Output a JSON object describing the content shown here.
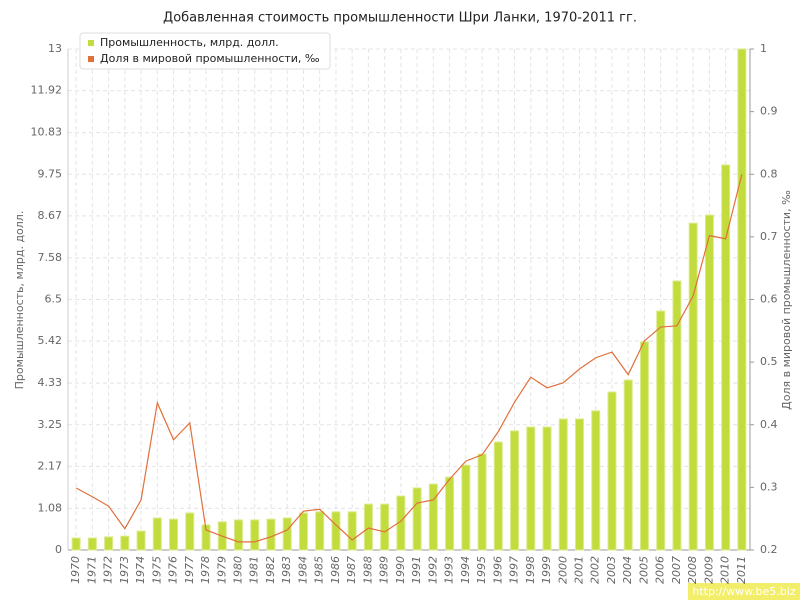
{
  "chart_data": {
    "type": "bar+line",
    "title": "Добавленная стоимость промышленности Шри Ланки, 1970-2011 гг.",
    "y_label": "Промышленность, млрд. долл.",
    "y2_label": "Доля в мировой промышленности, ‰",
    "watermark": "http://www.be5.biz",
    "legend": "top-left",
    "grid": true,
    "categories": [
      "1970",
      "1971",
      "1972",
      "1973",
      "1974",
      "1975",
      "1976",
      "1977",
      "1978",
      "1979",
      "1980",
      "1981",
      "1982",
      "1983",
      "1984",
      "1985",
      "1986",
      "1987",
      "1988",
      "1989",
      "1990",
      "1991",
      "1992",
      "1993",
      "1994",
      "1995",
      "1996",
      "1997",
      "1998",
      "1999",
      "2000",
      "2001",
      "2002",
      "2003",
      "2004",
      "2005",
      "2006",
      "2007",
      "2008",
      "2009",
      "2010",
      "2011"
    ],
    "ylim": [
      0,
      13
    ],
    "yticks": [
      0,
      1.08,
      2.17,
      3.25,
      4.33,
      5.42,
      6.5,
      7.58,
      8.67,
      9.75,
      10.83,
      11.92,
      13
    ],
    "y2lim": [
      0.2,
      1
    ],
    "y2ticks": [
      0.2,
      0.3,
      0.4,
      0.5,
      0.6,
      0.7,
      0.8,
      0.9,
      1
    ],
    "series": [
      {
        "name": "Промышленность, млрд. долл.",
        "type": "bar",
        "color": "#c2dc3e",
        "values": [
          0.31,
          0.31,
          0.34,
          0.36,
          0.49,
          0.83,
          0.8,
          0.96,
          0.65,
          0.73,
          0.78,
          0.78,
          0.8,
          0.83,
          0.96,
          0.99,
          0.99,
          0.99,
          1.19,
          1.19,
          1.4,
          1.61,
          1.71,
          1.89,
          2.2,
          2.49,
          2.8,
          3.09,
          3.19,
          3.19,
          3.4,
          3.4,
          3.61,
          4.1,
          4.41,
          5.4,
          6.2,
          6.98,
          8.48,
          8.69,
          9.99,
          13
        ]
      },
      {
        "name": "Доля в мировой промышленности, ‰",
        "type": "line",
        "axis": "y2",
        "color": "#e0703c",
        "values": [
          0.299,
          0.285,
          0.27,
          0.234,
          0.28,
          0.435,
          0.376,
          0.403,
          0.232,
          0.222,
          0.213,
          0.213,
          0.221,
          0.232,
          0.262,
          0.265,
          0.24,
          0.216,
          0.235,
          0.229,
          0.246,
          0.275,
          0.28,
          0.313,
          0.342,
          0.352,
          0.389,
          0.436,
          0.476,
          0.459,
          0.467,
          0.489,
          0.507,
          0.516,
          0.48,
          0.534,
          0.556,
          0.558,
          0.606,
          0.702,
          0.697,
          0.8
        ]
      }
    ]
  }
}
